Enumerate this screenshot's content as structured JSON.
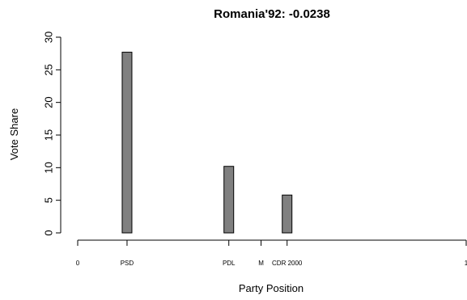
{
  "chart_data": {
    "type": "bar",
    "title": "Romania'92: -0.0238",
    "xlabel": "Party Position",
    "ylabel": "Vote Share",
    "xlim": [
      0,
      1
    ],
    "ylim": [
      0,
      30
    ],
    "y_ticks": [
      0,
      5,
      10,
      15,
      20,
      25,
      30
    ],
    "grid": false,
    "x_ticks": [
      {
        "label": "0",
        "x": 0
      },
      {
        "label": "PSD",
        "x": 0.127
      },
      {
        "label": "PDL",
        "x": 0.389
      },
      {
        "label": "M",
        "x": 0.472
      },
      {
        "label": "CDR 2000",
        "x": 0.539
      },
      {
        "label": "1",
        "x": 1
      }
    ],
    "bars": [
      {
        "category": "PSD",
        "x": 0.127,
        "value": 27.7
      },
      {
        "category": "PDL",
        "x": 0.389,
        "value": 10.2
      },
      {
        "category": "CDR 2000",
        "x": 0.539,
        "value": 5.8
      }
    ],
    "bar_color": "#808080"
  }
}
